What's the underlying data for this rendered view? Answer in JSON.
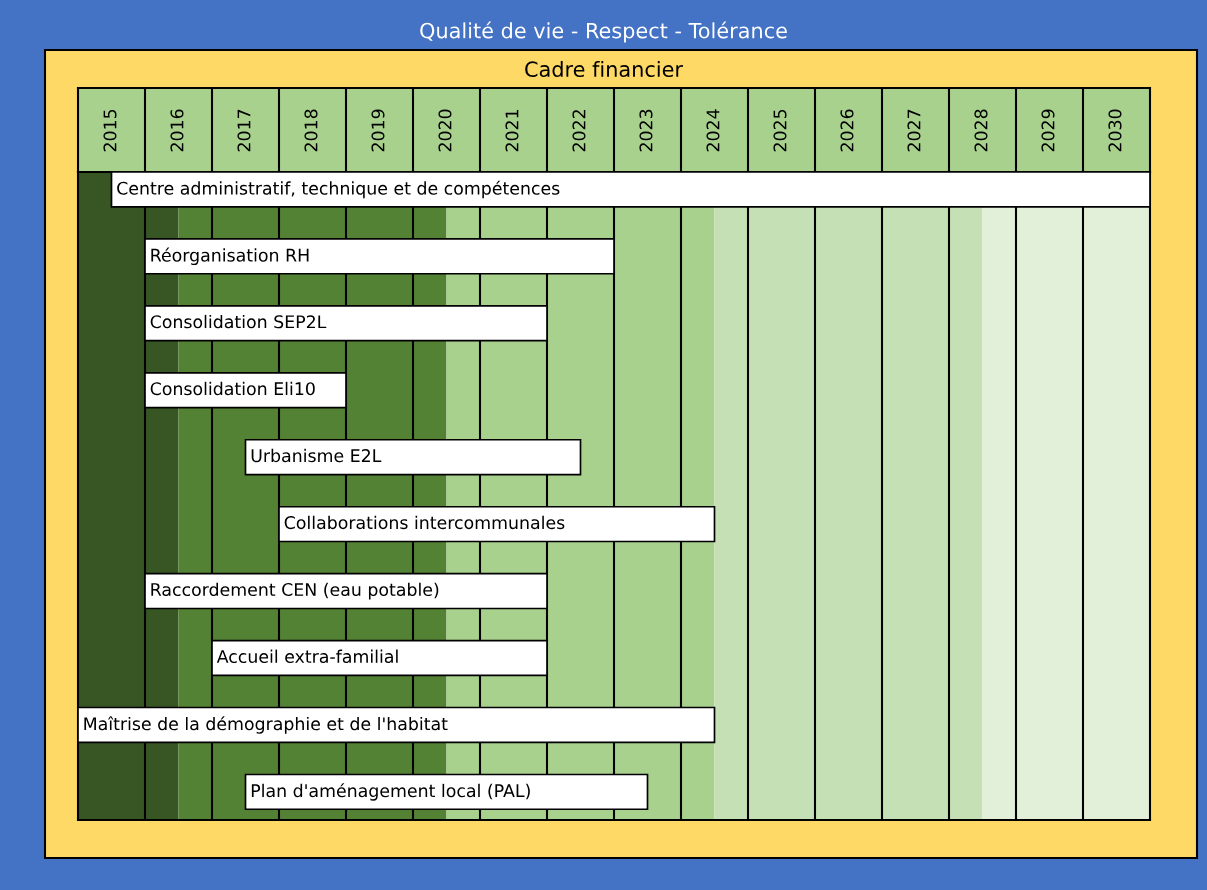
{
  "chart_data": {
    "type": "bar",
    "orientation": "horizontal",
    "title": "Qualité de vie - Respect - Tolérance",
    "subtitle": "Cadre financier",
    "categories": [
      "Centre administratif, technique et de compétences",
      "Réorganisation RH",
      "Consolidation SEP2L",
      "Consolidation Eli10",
      "Urbanisme E2L",
      "Collaborations intercommunales",
      "Raccordement CEN (eau potable)",
      "Accueil extra-familial",
      "Maîtrise de la démographie et de l'habitat",
      "Plan d'aménagement local (PAL)"
    ],
    "base": [
      2015.5,
      2016,
      2016,
      2016,
      2017.5,
      2018,
      2016,
      2017,
      2015,
      2017.5
    ],
    "values": [
      15.5,
      7,
      6,
      3,
      5,
      6.5,
      6,
      5,
      9.5,
      6
    ],
    "color": "#ffffff",
    "xlim": [
      2015,
      2031
    ],
    "xticks": [
      {
        "value": 2015.5,
        "label": "2015"
      },
      {
        "value": 2016.5,
        "label": "2016"
      },
      {
        "value": 2017.5,
        "label": "2017"
      },
      {
        "value": 2018.5,
        "label": "2018"
      },
      {
        "value": 2019.5,
        "label": "2019"
      },
      {
        "value": 2020.5,
        "label": "2020"
      },
      {
        "value": 2021.5,
        "label": "2021"
      },
      {
        "value": 2022.5,
        "label": "2022"
      },
      {
        "value": 2023.5,
        "label": "2023"
      },
      {
        "value": 2024.5,
        "label": "2024"
      },
      {
        "value": 2025.5,
        "label": "2025"
      },
      {
        "value": 2026.5,
        "label": "2026"
      },
      {
        "value": 2027.5,
        "label": "2027"
      },
      {
        "value": 2028.5,
        "label": "2028"
      },
      {
        "value": 2029.5,
        "label": "2029"
      },
      {
        "value": 2030.5,
        "label": "2030"
      },
      {
        "value": 2016,
        "label": null
      },
      {
        "value": 2017,
        "label": null
      },
      {
        "value": 2018,
        "label": null
      },
      {
        "value": 2019,
        "label": null
      },
      {
        "value": 2020,
        "label": null
      },
      {
        "value": 2021,
        "label": null
      },
      {
        "value": 2022,
        "label": null
      },
      {
        "value": 2023,
        "label": null
      },
      {
        "value": 2024,
        "label": null
      },
      {
        "value": 2025,
        "label": null
      },
      {
        "value": 2026,
        "label": null
      },
      {
        "value": 2027,
        "label": null
      },
      {
        "value": 2028,
        "label": null
      },
      {
        "value": 2029,
        "label": null
      },
      {
        "value": 2030,
        "label": null
      }
    ],
    "grid": "x",
    "tick_labels": "x",
    "legend": false,
    "bands": [
      {
        "axis": "x",
        "from": 2015,
        "to": 2016.5,
        "color": "#375623"
      },
      {
        "axis": "x",
        "from": 2016.5,
        "to": 2020.5,
        "color": "#548235"
      },
      {
        "axis": "x",
        "from": 2020.5,
        "to": 2024.5,
        "color": "#a9d18e"
      },
      {
        "axis": "x",
        "from": 2024.5,
        "to": 2028.5,
        "color": "#c5e0b4"
      },
      {
        "axis": "x",
        "from": 2028.5,
        "to": 2031,
        "color": "#e2f0d9"
      }
    ]
  }
}
